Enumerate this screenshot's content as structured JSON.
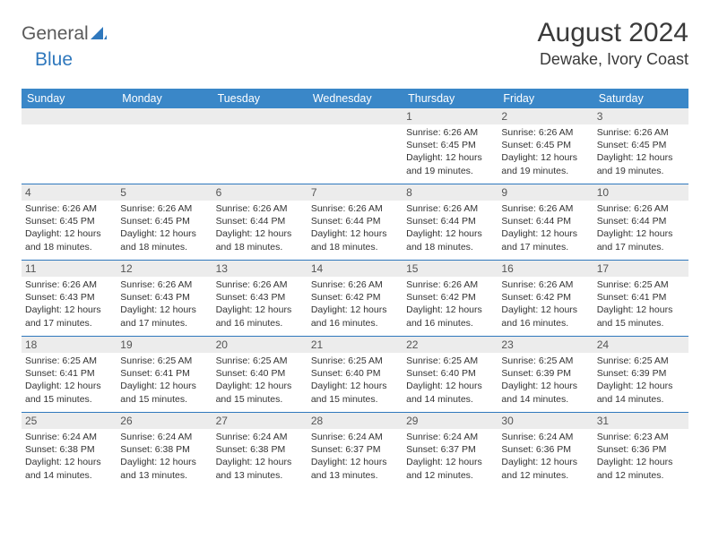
{
  "logo": {
    "general": "General",
    "blue": "Blue"
  },
  "title": "August 2024",
  "location": "Dewake, Ivory Coast",
  "weekdays": [
    "Sunday",
    "Monday",
    "Tuesday",
    "Wednesday",
    "Thursday",
    "Friday",
    "Saturday"
  ],
  "colors": {
    "header_bg": "#3a87c8",
    "border": "#2f78bd",
    "daynum_bg": "#ececec",
    "text": "#333333"
  },
  "weeks": [
    [
      {
        "n": "",
        "sr": "",
        "ss": "",
        "dl": ""
      },
      {
        "n": "",
        "sr": "",
        "ss": "",
        "dl": ""
      },
      {
        "n": "",
        "sr": "",
        "ss": "",
        "dl": ""
      },
      {
        "n": "",
        "sr": "",
        "ss": "",
        "dl": ""
      },
      {
        "n": "1",
        "sr": "Sunrise: 6:26 AM",
        "ss": "Sunset: 6:45 PM",
        "dl": "Daylight: 12 hours and 19 minutes."
      },
      {
        "n": "2",
        "sr": "Sunrise: 6:26 AM",
        "ss": "Sunset: 6:45 PM",
        "dl": "Daylight: 12 hours and 19 minutes."
      },
      {
        "n": "3",
        "sr": "Sunrise: 6:26 AM",
        "ss": "Sunset: 6:45 PM",
        "dl": "Daylight: 12 hours and 19 minutes."
      }
    ],
    [
      {
        "n": "4",
        "sr": "Sunrise: 6:26 AM",
        "ss": "Sunset: 6:45 PM",
        "dl": "Daylight: 12 hours and 18 minutes."
      },
      {
        "n": "5",
        "sr": "Sunrise: 6:26 AM",
        "ss": "Sunset: 6:45 PM",
        "dl": "Daylight: 12 hours and 18 minutes."
      },
      {
        "n": "6",
        "sr": "Sunrise: 6:26 AM",
        "ss": "Sunset: 6:44 PM",
        "dl": "Daylight: 12 hours and 18 minutes."
      },
      {
        "n": "7",
        "sr": "Sunrise: 6:26 AM",
        "ss": "Sunset: 6:44 PM",
        "dl": "Daylight: 12 hours and 18 minutes."
      },
      {
        "n": "8",
        "sr": "Sunrise: 6:26 AM",
        "ss": "Sunset: 6:44 PM",
        "dl": "Daylight: 12 hours and 18 minutes."
      },
      {
        "n": "9",
        "sr": "Sunrise: 6:26 AM",
        "ss": "Sunset: 6:44 PM",
        "dl": "Daylight: 12 hours and 17 minutes."
      },
      {
        "n": "10",
        "sr": "Sunrise: 6:26 AM",
        "ss": "Sunset: 6:44 PM",
        "dl": "Daylight: 12 hours and 17 minutes."
      }
    ],
    [
      {
        "n": "11",
        "sr": "Sunrise: 6:26 AM",
        "ss": "Sunset: 6:43 PM",
        "dl": "Daylight: 12 hours and 17 minutes."
      },
      {
        "n": "12",
        "sr": "Sunrise: 6:26 AM",
        "ss": "Sunset: 6:43 PM",
        "dl": "Daylight: 12 hours and 17 minutes."
      },
      {
        "n": "13",
        "sr": "Sunrise: 6:26 AM",
        "ss": "Sunset: 6:43 PM",
        "dl": "Daylight: 12 hours and 16 minutes."
      },
      {
        "n": "14",
        "sr": "Sunrise: 6:26 AM",
        "ss": "Sunset: 6:42 PM",
        "dl": "Daylight: 12 hours and 16 minutes."
      },
      {
        "n": "15",
        "sr": "Sunrise: 6:26 AM",
        "ss": "Sunset: 6:42 PM",
        "dl": "Daylight: 12 hours and 16 minutes."
      },
      {
        "n": "16",
        "sr": "Sunrise: 6:26 AM",
        "ss": "Sunset: 6:42 PM",
        "dl": "Daylight: 12 hours and 16 minutes."
      },
      {
        "n": "17",
        "sr": "Sunrise: 6:25 AM",
        "ss": "Sunset: 6:41 PM",
        "dl": "Daylight: 12 hours and 15 minutes."
      }
    ],
    [
      {
        "n": "18",
        "sr": "Sunrise: 6:25 AM",
        "ss": "Sunset: 6:41 PM",
        "dl": "Daylight: 12 hours and 15 minutes."
      },
      {
        "n": "19",
        "sr": "Sunrise: 6:25 AM",
        "ss": "Sunset: 6:41 PM",
        "dl": "Daylight: 12 hours and 15 minutes."
      },
      {
        "n": "20",
        "sr": "Sunrise: 6:25 AM",
        "ss": "Sunset: 6:40 PM",
        "dl": "Daylight: 12 hours and 15 minutes."
      },
      {
        "n": "21",
        "sr": "Sunrise: 6:25 AM",
        "ss": "Sunset: 6:40 PM",
        "dl": "Daylight: 12 hours and 15 minutes."
      },
      {
        "n": "22",
        "sr": "Sunrise: 6:25 AM",
        "ss": "Sunset: 6:40 PM",
        "dl": "Daylight: 12 hours and 14 minutes."
      },
      {
        "n": "23",
        "sr": "Sunrise: 6:25 AM",
        "ss": "Sunset: 6:39 PM",
        "dl": "Daylight: 12 hours and 14 minutes."
      },
      {
        "n": "24",
        "sr": "Sunrise: 6:25 AM",
        "ss": "Sunset: 6:39 PM",
        "dl": "Daylight: 12 hours and 14 minutes."
      }
    ],
    [
      {
        "n": "25",
        "sr": "Sunrise: 6:24 AM",
        "ss": "Sunset: 6:38 PM",
        "dl": "Daylight: 12 hours and 14 minutes."
      },
      {
        "n": "26",
        "sr": "Sunrise: 6:24 AM",
        "ss": "Sunset: 6:38 PM",
        "dl": "Daylight: 12 hours and 13 minutes."
      },
      {
        "n": "27",
        "sr": "Sunrise: 6:24 AM",
        "ss": "Sunset: 6:38 PM",
        "dl": "Daylight: 12 hours and 13 minutes."
      },
      {
        "n": "28",
        "sr": "Sunrise: 6:24 AM",
        "ss": "Sunset: 6:37 PM",
        "dl": "Daylight: 12 hours and 13 minutes."
      },
      {
        "n": "29",
        "sr": "Sunrise: 6:24 AM",
        "ss": "Sunset: 6:37 PM",
        "dl": "Daylight: 12 hours and 12 minutes."
      },
      {
        "n": "30",
        "sr": "Sunrise: 6:24 AM",
        "ss": "Sunset: 6:36 PM",
        "dl": "Daylight: 12 hours and 12 minutes."
      },
      {
        "n": "31",
        "sr": "Sunrise: 6:23 AM",
        "ss": "Sunset: 6:36 PM",
        "dl": "Daylight: 12 hours and 12 minutes."
      }
    ]
  ]
}
